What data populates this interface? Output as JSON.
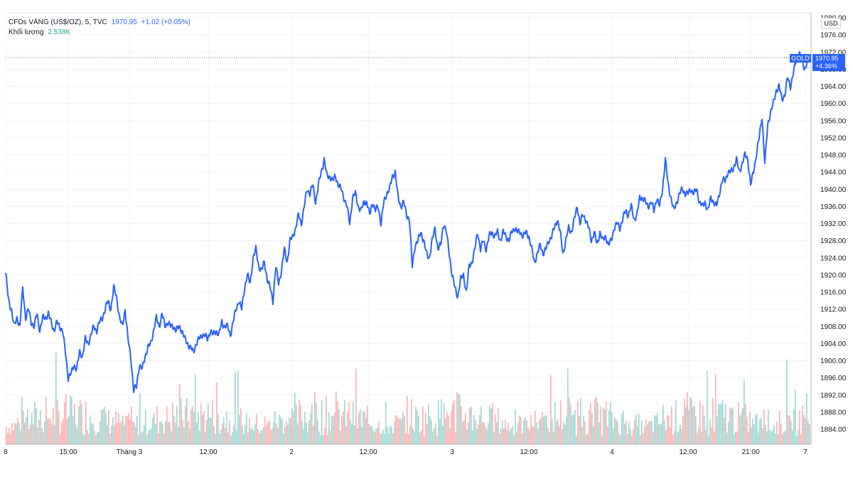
{
  "legend": {
    "symbol": "CFDs VÀNG (US$/OZ), 5, TVC",
    "last": "1970.95",
    "change": "+1.02 (+0.05%)",
    "volume_label": "Khối lượng",
    "volume_value": "2.538K"
  },
  "axis": {
    "unit": "USD",
    "y_ticks": [
      "1980.00",
      "1976.00",
      "1972.00",
      "1968.00",
      "1964.00",
      "1960.00",
      "1956.00",
      "1952.00",
      "1948.00",
      "1944.00",
      "1940.00",
      "1936.00",
      "1932.00",
      "1928.00",
      "1924.00",
      "1920.00",
      "1916.00",
      "1912.00",
      "1908.00",
      "1904.00",
      "1900.00",
      "1896.00",
      "1892.00",
      "1888.00",
      "1884.00"
    ],
    "x_ticks": [
      "8",
      "15:00",
      "Tháng 3",
      "12:00",
      "2",
      "12:00",
      "3",
      "12:00",
      "4",
      "12:00",
      "21:00",
      "7"
    ]
  },
  "price_tag": {
    "symbol": "GOLD",
    "value": "1970.95",
    "change": "+4.36%"
  },
  "colors": {
    "line": "#2962ff",
    "volume_up": "#26a69a",
    "volume_down": "#ef5350",
    "grid": "#f0f3fa"
  },
  "chart_data": {
    "type": "line",
    "ylim": [
      1882,
      1982
    ],
    "keyframes": [
      [
        0,
        1920.5
      ],
      [
        4,
        1914
      ],
      [
        8,
        1912
      ],
      [
        12,
        1908
      ],
      [
        16,
        1910
      ],
      [
        20,
        1908
      ],
      [
        24,
        1917
      ],
      [
        28,
        1910
      ],
      [
        32,
        1912
      ],
      [
        36,
        1909
      ],
      [
        40,
        1908
      ],
      [
        44,
        1911
      ],
      [
        48,
        1907
      ],
      [
        52,
        1910
      ],
      [
        56,
        1910
      ],
      [
        60,
        1911
      ],
      [
        64,
        1909
      ],
      [
        68,
        1907
      ],
      [
        72,
        1909
      ],
      [
        76,
        1908
      ],
      [
        80,
        1907
      ],
      [
        84,
        1902
      ],
      [
        88,
        1896
      ],
      [
        92,
        1897
      ],
      [
        96,
        1899
      ],
      [
        100,
        1898
      ],
      [
        104,
        1902
      ],
      [
        108,
        1901
      ],
      [
        112,
        1905
      ],
      [
        116,
        1904
      ],
      [
        120,
        1906
      ],
      [
        124,
        1908
      ],
      [
        128,
        1907
      ],
      [
        132,
        1909
      ],
      [
        136,
        1910
      ],
      [
        140,
        1912
      ],
      [
        144,
        1914
      ],
      [
        148,
        1912
      ],
      [
        152,
        1917
      ],
      [
        156,
        1915
      ],
      [
        160,
        1910
      ],
      [
        164,
        1908
      ],
      [
        168,
        1912
      ],
      [
        172,
        1905
      ],
      [
        176,
        1901
      ],
      [
        180,
        1893
      ],
      [
        184,
        1894
      ],
      [
        188,
        1899
      ],
      [
        192,
        1898
      ],
      [
        196,
        1901
      ],
      [
        200,
        1903
      ],
      [
        204,
        1904
      ],
      [
        208,
        1907
      ],
      [
        212,
        1910
      ],
      [
        216,
        1908
      ],
      [
        220,
        1911
      ],
      [
        224,
        1908
      ],
      [
        228,
        1909
      ],
      [
        232,
        1908
      ],
      [
        236,
        1908
      ],
      [
        240,
        1907
      ],
      [
        244,
        1908
      ],
      [
        248,
        1907
      ],
      [
        252,
        1905
      ],
      [
        256,
        1904
      ],
      [
        260,
        1903
      ],
      [
        264,
        1902
      ],
      [
        268,
        1904
      ],
      [
        272,
        1905
      ],
      [
        276,
        1906
      ],
      [
        280,
        1906
      ],
      [
        284,
        1905
      ],
      [
        288,
        1907
      ],
      [
        292,
        1906
      ],
      [
        296,
        1907
      ],
      [
        300,
        1906
      ],
      [
        304,
        1909
      ],
      [
        308,
        1908
      ],
      [
        312,
        1908
      ],
      [
        316,
        1906
      ],
      [
        320,
        1909
      ],
      [
        324,
        1912
      ],
      [
        328,
        1914
      ],
      [
        332,
        1912
      ],
      [
        336,
        1917
      ],
      [
        340,
        1920
      ],
      [
        344,
        1918
      ],
      [
        348,
        1924
      ],
      [
        352,
        1926
      ],
      [
        356,
        1922
      ],
      [
        360,
        1921
      ],
      [
        364,
        1923
      ],
      [
        368,
        1919
      ],
      [
        372,
        1917
      ],
      [
        376,
        1914
      ],
      [
        380,
        1922
      ],
      [
        384,
        1918
      ],
      [
        388,
        1921
      ],
      [
        392,
        1926
      ],
      [
        396,
        1923
      ],
      [
        400,
        1928
      ],
      [
        404,
        1929
      ],
      [
        408,
        1931
      ],
      [
        412,
        1934
      ],
      [
        416,
        1932
      ],
      [
        420,
        1936
      ],
      [
        424,
        1940
      ],
      [
        428,
        1939
      ],
      [
        432,
        1941
      ],
      [
        436,
        1937
      ],
      [
        440,
        1941
      ],
      [
        444,
        1944
      ],
      [
        448,
        1947
      ],
      [
        452,
        1943
      ],
      [
        456,
        1943
      ],
      [
        460,
        1942
      ],
      [
        464,
        1943
      ],
      [
        468,
        1941
      ],
      [
        472,
        1940
      ],
      [
        476,
        1938
      ],
      [
        480,
        1936
      ],
      [
        484,
        1932
      ],
      [
        488,
        1938
      ],
      [
        492,
        1939
      ],
      [
        496,
        1936
      ],
      [
        500,
        1935
      ],
      [
        504,
        1937
      ],
      [
        508,
        1937
      ],
      [
        512,
        1934
      ],
      [
        516,
        1937
      ],
      [
        520,
        1935
      ],
      [
        524,
        1936
      ],
      [
        528,
        1932
      ],
      [
        532,
        1937
      ],
      [
        536,
        1939
      ],
      [
        540,
        1940
      ],
      [
        544,
        1943
      ],
      [
        548,
        1944
      ],
      [
        552,
        1938
      ],
      [
        556,
        1936
      ],
      [
        560,
        1937
      ],
      [
        564,
        1934
      ],
      [
        568,
        1933
      ],
      [
        572,
        1922
      ],
      [
        576,
        1927
      ],
      [
        580,
        1928
      ],
      [
        584,
        1930
      ],
      [
        588,
        1928
      ],
      [
        592,
        1925
      ],
      [
        596,
        1924
      ],
      [
        600,
        1928
      ],
      [
        604,
        1931
      ],
      [
        608,
        1926
      ],
      [
        612,
        1927
      ],
      [
        616,
        1932
      ],
      [
        620,
        1930
      ],
      [
        624,
        1925
      ],
      [
        628,
        1920
      ],
      [
        632,
        1917
      ],
      [
        636,
        1915
      ],
      [
        640,
        1919
      ],
      [
        644,
        1920
      ],
      [
        648,
        1916
      ],
      [
        652,
        1922
      ],
      [
        656,
        1923
      ],
      [
        660,
        1926
      ],
      [
        664,
        1930
      ],
      [
        668,
        1926
      ],
      [
        672,
        1928
      ],
      [
        676,
        1926
      ],
      [
        680,
        1929
      ],
      [
        684,
        1930
      ],
      [
        688,
        1929
      ],
      [
        692,
        1930
      ],
      [
        696,
        1928
      ],
      [
        700,
        1930
      ],
      [
        704,
        1929
      ],
      [
        708,
        1928
      ],
      [
        712,
        1930
      ],
      [
        716,
        1931
      ],
      [
        720,
        1930
      ],
      [
        724,
        1930
      ],
      [
        728,
        1929
      ],
      [
        732,
        1930
      ],
      [
        736,
        1929
      ],
      [
        740,
        1926
      ],
      [
        744,
        1923
      ],
      [
        748,
        1925
      ],
      [
        752,
        1927
      ],
      [
        756,
        1925
      ],
      [
        760,
        1926
      ],
      [
        764,
        1928
      ],
      [
        768,
        1929
      ],
      [
        772,
        1931
      ],
      [
        776,
        1933
      ],
      [
        780,
        1930
      ],
      [
        784,
        1925
      ],
      [
        788,
        1928
      ],
      [
        792,
        1931
      ],
      [
        796,
        1930
      ],
      [
        800,
        1933
      ],
      [
        804,
        1936
      ],
      [
        808,
        1932
      ],
      [
        812,
        1934
      ],
      [
        816,
        1933
      ],
      [
        820,
        1931
      ],
      [
        824,
        1928
      ],
      [
        828,
        1930
      ],
      [
        832,
        1927
      ],
      [
        836,
        1930
      ],
      [
        840,
        1928
      ],
      [
        844,
        1929
      ],
      [
        848,
        1927
      ],
      [
        852,
        1928
      ],
      [
        856,
        1931
      ],
      [
        860,
        1932
      ],
      [
        864,
        1931
      ],
      [
        868,
        1933
      ],
      [
        872,
        1935
      ],
      [
        876,
        1934
      ],
      [
        880,
        1936
      ],
      [
        884,
        1933
      ],
      [
        888,
        1934
      ],
      [
        892,
        1938
      ],
      [
        896,
        1938
      ],
      [
        900,
        1937
      ],
      [
        904,
        1936
      ],
      [
        908,
        1937
      ],
      [
        912,
        1935
      ],
      [
        916,
        1938
      ],
      [
        920,
        1936
      ],
      [
        924,
        1940
      ],
      [
        928,
        1947
      ],
      [
        932,
        1941
      ],
      [
        936,
        1938
      ],
      [
        940,
        1935
      ],
      [
        944,
        1937
      ],
      [
        948,
        1939
      ],
      [
        952,
        1940
      ],
      [
        956,
        1939
      ],
      [
        960,
        1939
      ],
      [
        964,
        1940
      ],
      [
        968,
        1939
      ],
      [
        972,
        1940
      ],
      [
        976,
        1937
      ],
      [
        980,
        1936
      ],
      [
        984,
        1937
      ],
      [
        988,
        1935
      ],
      [
        992,
        1938
      ],
      [
        996,
        1937
      ],
      [
        1000,
        1936
      ],
      [
        1004,
        1939
      ],
      [
        1008,
        1942
      ],
      [
        1012,
        1942
      ],
      [
        1016,
        1944
      ],
      [
        1020,
        1944
      ],
      [
        1024,
        1945
      ],
      [
        1028,
        1947
      ],
      [
        1032,
        1944
      ],
      [
        1036,
        1946
      ],
      [
        1040,
        1948
      ],
      [
        1044,
        1947
      ],
      [
        1048,
        1941
      ],
      [
        1052,
        1944
      ],
      [
        1056,
        1948
      ],
      [
        1060,
        1952
      ],
      [
        1064,
        1957
      ],
      [
        1068,
        1946
      ],
      [
        1072,
        1955
      ],
      [
        1076,
        1958
      ],
      [
        1080,
        1960
      ],
      [
        1084,
        1963
      ],
      [
        1088,
        1964
      ],
      [
        1092,
        1961
      ],
      [
        1096,
        1962
      ],
      [
        1100,
        1966
      ],
      [
        1104,
        1964
      ],
      [
        1108,
        1967
      ],
      [
        1112,
        1970
      ],
      [
        1116,
        1972
      ],
      [
        1120,
        1970
      ],
      [
        1124,
        1968
      ],
      [
        1128,
        1970
      ],
      [
        1131,
        1970.95
      ]
    ]
  }
}
